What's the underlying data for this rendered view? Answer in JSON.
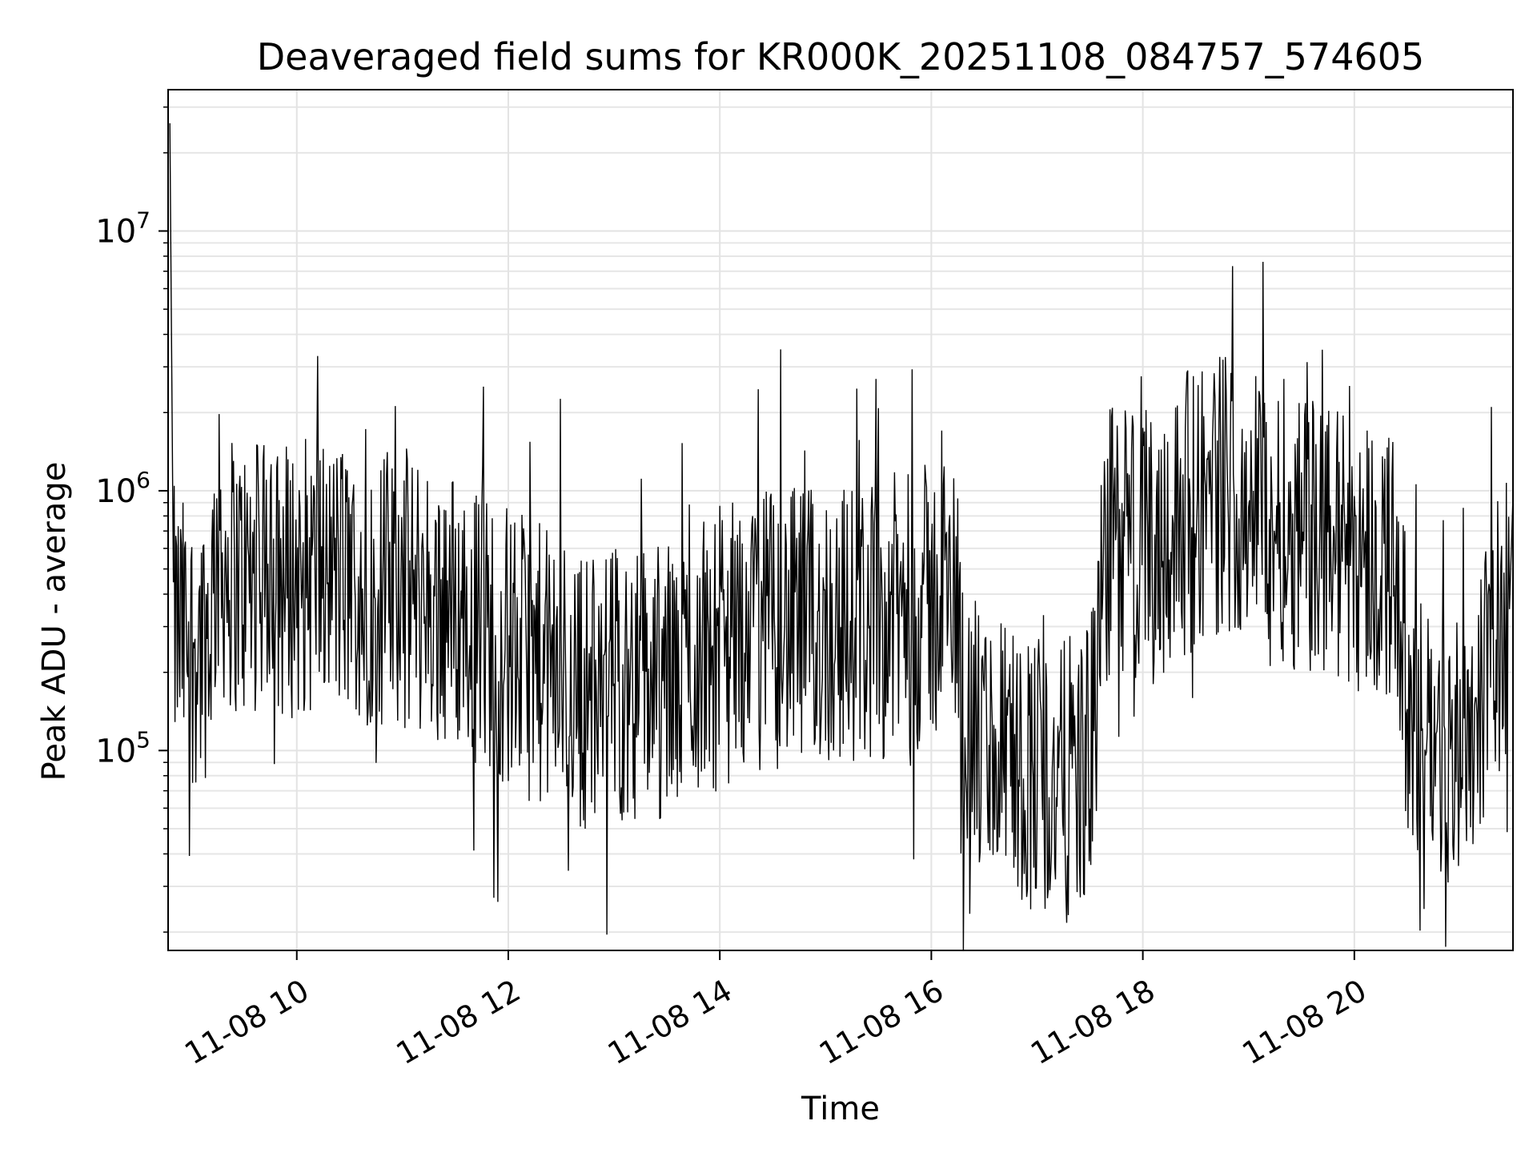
{
  "chart_data": {
    "type": "line",
    "title": "Deaveraged field sums for KR000K_20251108_084757_574605",
    "xlabel": "Time",
    "ylabel": "Peak ADU - average",
    "yscale": "log",
    "grid": true,
    "line_color": "#000000",
    "xlim": [
      "2025-11-08 08:47",
      "2025-11-08 21:30"
    ],
    "ylim": [
      17000,
      35000000
    ],
    "xtick_labels": [
      {
        "t": "2025-11-08 10:00",
        "label": "11-08 10"
      },
      {
        "t": "2025-11-08 12:00",
        "label": "11-08 12"
      },
      {
        "t": "2025-11-08 14:00",
        "label": "11-08 14"
      },
      {
        "t": "2025-11-08 16:00",
        "label": "11-08 16"
      },
      {
        "t": "2025-11-08 18:00",
        "label": "11-08 18"
      },
      {
        "t": "2025-11-08 20:00",
        "label": "11-08 20"
      }
    ],
    "ytick_labels": [
      {
        "value": 100000,
        "base": "10",
        "exp": "5"
      },
      {
        "value": 1000000,
        "base": "10",
        "exp": "6"
      },
      {
        "value": 10000000,
        "base": "10",
        "exp": "7"
      }
    ],
    "series": [
      {
        "x": [
          "08:48",
          "08:50",
          "09:00",
          "09:10",
          "09:15",
          "09:20",
          "09:30",
          "09:45",
          "10:00",
          "10:15",
          "10:30",
          "10:45",
          "11:00",
          "11:15",
          "11:30",
          "11:45",
          "12:00",
          "12:15",
          "12:30",
          "12:45",
          "13:00",
          "13:15",
          "13:30",
          "13:40",
          "13:45",
          "14:00",
          "14:15",
          "14:30",
          "14:45",
          "15:00",
          "15:15",
          "15:30",
          "15:45",
          "16:00",
          "16:15",
          "16:20",
          "16:30",
          "16:45",
          "17:00",
          "17:10",
          "17:20",
          "17:30",
          "17:40",
          "17:45",
          "18:00",
          "18:15",
          "18:30",
          "18:45",
          "19:00",
          "19:15",
          "19:30",
          "19:45",
          "20:00",
          "20:15",
          "20:25",
          "20:30",
          "20:40",
          "20:50",
          "21:00",
          "21:10",
          "21:20",
          "21:28"
        ],
        "y": [
          26000000,
          300000,
          250000,
          280000,
          600000,
          500000,
          450000,
          440000,
          470000,
          480000,
          450000,
          420000,
          420000,
          380000,
          350000,
          300000,
          250000,
          220000,
          190000,
          170000,
          180000,
          190000,
          180000,
          200000,
          230000,
          250000,
          280000,
          300000,
          290000,
          300000,
          310000,
          320000,
          340000,
          370000,
          380000,
          120000,
          100000,
          90000,
          85000,
          70000,
          80000,
          90000,
          600000,
          650000,
          600000,
          700000,
          900000,
          1000000,
          950000,
          800000,
          700000,
          650000,
          600000,
          550000,
          500000,
          140000,
          110000,
          95000,
          100000,
          160000,
          250000,
          350000
        ]
      }
    ]
  }
}
